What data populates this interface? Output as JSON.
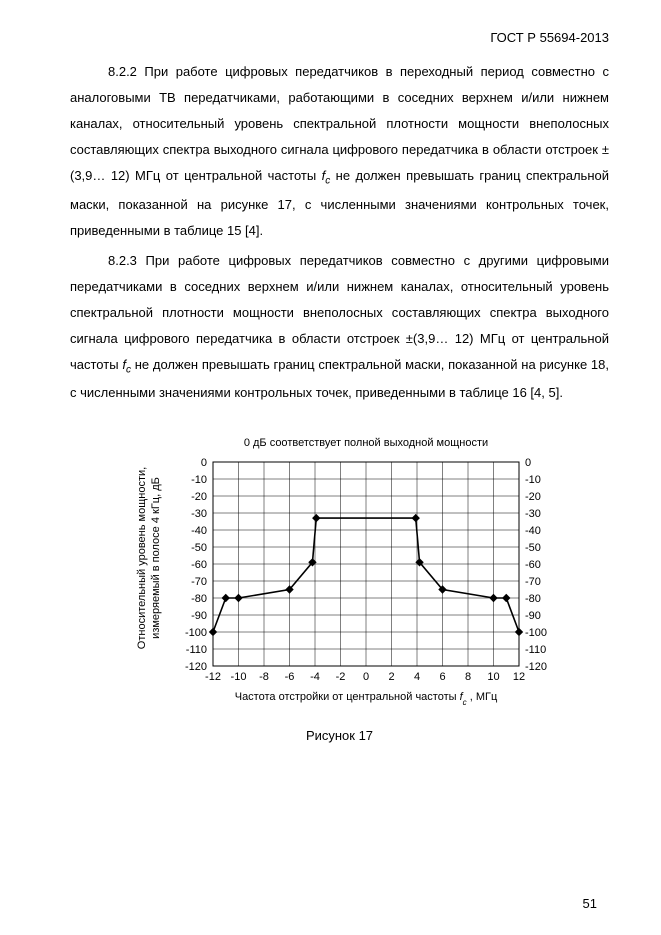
{
  "doc_id": "ГОСТ Р 55694-2013",
  "page_number": "51",
  "paragraphs": {
    "p1": "8.2.2 При работе цифровых передатчиков в переходный период совместно с аналоговыми ТВ передатчиками, работающими в соседних верхнем и/или нижнем каналах, относительный уровень спектральной плотности мощности внеполосных составляющих спектра выходного сигнала цифрового передатчика в области отстроек ±(3,9… 12) МГц от центральной частоты ",
    "p1_tail": " не должен превышать границ спектральной маски, показанной на рисунке 17, с численными значениями контрольных точек, приведенными в таблице 15 [4].",
    "p2": "8.2.3 При работе цифровых передатчиков совместно с другими цифровыми передатчиками в соседних верхнем и/или нижнем каналах, относительный уровень спектральной плотности мощности внеполосных составляющих спектра выходного сигнала цифрового передатчика в области отстроек ±(3,9… 12) МГц от центральной частоты ",
    "p2_tail": " не должен превышать границ спектральной маски, показанной на рисунке 18, с численными значениями контрольных точек, приведенными в таблице 16 [4, 5]."
  },
  "fc_symbol": "f",
  "fc_sub": "c",
  "figure_caption": "Рисунок 17",
  "chart": {
    "type": "line",
    "title": "0 дБ соответствует полной выходной мощности",
    "title_fontsize": 11,
    "ylabel_line1": "Относительный уровень мощности,",
    "ylabel_line2": "измеряемый в полосе 4 кГц, дБ",
    "xlabel_pre": "Частота отстройки от центральной частоты ",
    "xlabel_post": " , МГц",
    "label_fontsize": 11,
    "tick_fontsize": 11,
    "xlim": [
      -12,
      12
    ],
    "ylim": [
      -120,
      0
    ],
    "xticks": [
      -12,
      -10,
      -8,
      -6,
      -4,
      -2,
      0,
      2,
      4,
      6,
      8,
      10,
      12
    ],
    "yticks": [
      0,
      -10,
      -20,
      -30,
      -40,
      -50,
      -60,
      -70,
      -80,
      -90,
      -100,
      -110,
      -120
    ],
    "line_color": "#000000",
    "marker_color": "#000000",
    "marker_size": 4.2,
    "line_width": 1.6,
    "background_color": "#ffffff",
    "border_color": "#000000",
    "grid_color": "#000000",
    "grid_width": 0.5,
    "data": [
      [
        -12,
        -100
      ],
      [
        -11,
        -80
      ],
      [
        -10,
        -80
      ],
      [
        -6,
        -75
      ],
      [
        -4.2,
        -59
      ],
      [
        -3.9,
        -33
      ],
      [
        3.9,
        -33
      ],
      [
        4.2,
        -59
      ],
      [
        6,
        -75
      ],
      [
        10,
        -80
      ],
      [
        11,
        -80
      ],
      [
        12,
        -100
      ]
    ]
  }
}
